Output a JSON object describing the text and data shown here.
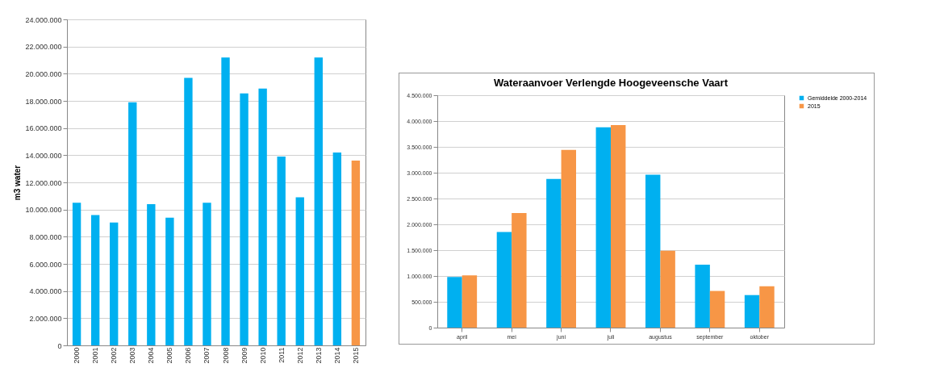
{
  "chart_data": [
    {
      "type": "bar",
      "ylabel": "m3 water",
      "categories": [
        "2000",
        "2001",
        "2002",
        "2003",
        "2004",
        "2005",
        "2006",
        "2007",
        "2008",
        "2009",
        "2010",
        "2011",
        "2012",
        "2013",
        "2014",
        "2015"
      ],
      "values": [
        10500000,
        9600000,
        9050000,
        17900000,
        10400000,
        9400000,
        19700000,
        10500000,
        21200000,
        18550000,
        18900000,
        13900000,
        10900000,
        21200000,
        14200000,
        13600000
      ],
      "colors": [
        "#00b0f0",
        "#00b0f0",
        "#00b0f0",
        "#00b0f0",
        "#00b0f0",
        "#00b0f0",
        "#00b0f0",
        "#00b0f0",
        "#00b0f0",
        "#00b0f0",
        "#00b0f0",
        "#00b0f0",
        "#00b0f0",
        "#00b0f0",
        "#00b0f0",
        "#f79646"
      ],
      "ylim": [
        0,
        24000000
      ],
      "yticks": [
        0,
        {
          "value": 2000000,
          "label": "2.000.000"
        },
        {
          "value": 4000000,
          "label": "4.000.000"
        },
        {
          "value": 6000000,
          "label": "6.000.000"
        },
        {
          "value": 8000000,
          "label": "8.000.000"
        },
        {
          "value": 10000000,
          "label": "10.000.000"
        },
        {
          "value": 12000000,
          "label": "12.000.000"
        },
        {
          "value": 14000000,
          "label": "14.000.000"
        },
        {
          "value": 16000000,
          "label": "16.000.000"
        },
        {
          "value": 18000000,
          "label": "18.000.000"
        },
        {
          "value": 20000000,
          "label": "20.000.000"
        },
        {
          "value": 22000000,
          "label": "22.000.000"
        },
        {
          "value": 24000000,
          "label": "24.000.000"
        }
      ],
      "grid": "y"
    },
    {
      "type": "bar",
      "title": "Wateraanvoer Verlengde Hoogeveensche Vaart",
      "categories": [
        "april",
        "mei",
        "juni",
        "juli",
        "augustus",
        "september",
        "oktober"
      ],
      "series": [
        {
          "name": "Gemiddelde 2000-2014",
          "color": "#00b0f0",
          "values": [
            980000,
            1850000,
            2880000,
            3880000,
            2960000,
            1220000,
            630000
          ]
        },
        {
          "name": "2015",
          "color": "#f79646",
          "values": [
            1010000,
            2220000,
            3440000,
            3920000,
            1490000,
            710000,
            800000
          ]
        }
      ],
      "ylim": [
        0,
        4500000
      ],
      "yticks": [
        0,
        {
          "value": 500000,
          "label": "500.000"
        },
        {
          "value": 1000000,
          "label": "1.000.000"
        },
        {
          "value": 1500000,
          "label": "1.500.000"
        },
        {
          "value": 2000000,
          "label": "2.000.000"
        },
        {
          "value": 2500000,
          "label": "2.500.000"
        },
        {
          "value": 3000000,
          "label": "3.000.000"
        },
        {
          "value": 3500000,
          "label": "3.500.000"
        },
        {
          "value": 4000000,
          "label": "4.000.000"
        },
        {
          "value": 4500000,
          "label": "4.500.000"
        }
      ],
      "grid": "y",
      "legend": "right"
    }
  ]
}
